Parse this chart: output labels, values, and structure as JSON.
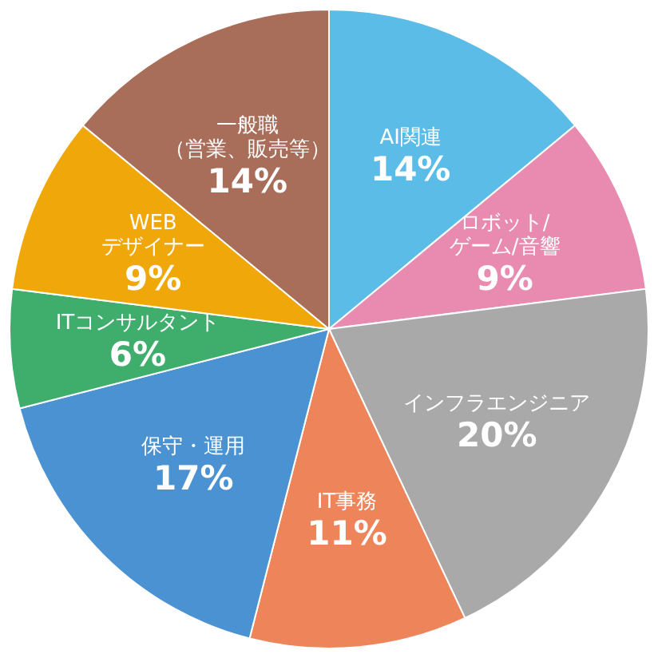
{
  "chart_data": {
    "type": "pie",
    "categories": [
      "AI関連",
      "ロボット/\nゲーム/音響",
      "インフラエンジニア",
      "IT事務",
      "保守・運用",
      "ITコンサルタント",
      "WEB\nデザイナー",
      "一般職（営業、販売等）"
    ],
    "values": [
      14,
      9,
      20,
      11,
      17,
      6,
      9,
      14
    ],
    "value_labels": [
      "14%",
      "9%",
      "20%",
      "11%",
      "17%",
      "6%",
      "9%",
      "14%"
    ],
    "colors": [
      "#5bbce8",
      "#e98ab0",
      "#a9a9a9",
      "#ee845a",
      "#4a92d2",
      "#3fae6c",
      "#f0a70a",
      "#a96e59"
    ]
  }
}
